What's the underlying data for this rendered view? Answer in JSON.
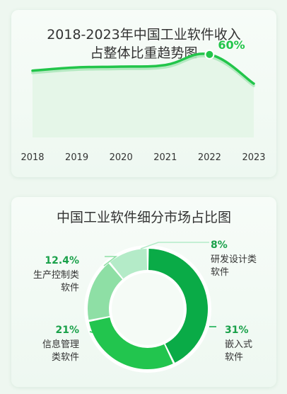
{
  "chart_data": [
    {
      "type": "line",
      "title": "2018-2023年中国工业软件收入占整体比重趋势图",
      "title_lines": [
        "2018-2023年中国工业软件收入",
        "占整体比重趋势图"
      ],
      "x": [
        "2018",
        "2019",
        "2020",
        "2021",
        "2022",
        "2023"
      ],
      "values": [
        50,
        52,
        52.5,
        53.5,
        60,
        42
      ],
      "highlight": {
        "index": 4,
        "label": "60%"
      },
      "ylim": [
        0,
        70
      ],
      "grid": false,
      "colors": {
        "line": "#22c54a",
        "fill": "#e3f5e7",
        "label": "#22c54a"
      }
    },
    {
      "type": "pie",
      "donut": true,
      "title": "中国工业软件细分市场占比图",
      "slices": [
        {
          "value": 31,
          "label": "31%",
          "name_lines": [
            "嵌入式",
            "软件"
          ],
          "color": "#0aab47"
        },
        {
          "value": 21,
          "label": "21%",
          "name_lines": [
            "信息管理",
            "类软件"
          ],
          "color": "#22c54e"
        },
        {
          "value": 12.4,
          "label": "12.4%",
          "name_lines": [
            "生产控制类",
            "软件"
          ],
          "color": "#8edfa5"
        },
        {
          "value": 8,
          "label": "8%",
          "name_lines": [
            "研发设计类",
            "软件"
          ],
          "color": "#b4ebc8"
        }
      ]
    }
  ]
}
